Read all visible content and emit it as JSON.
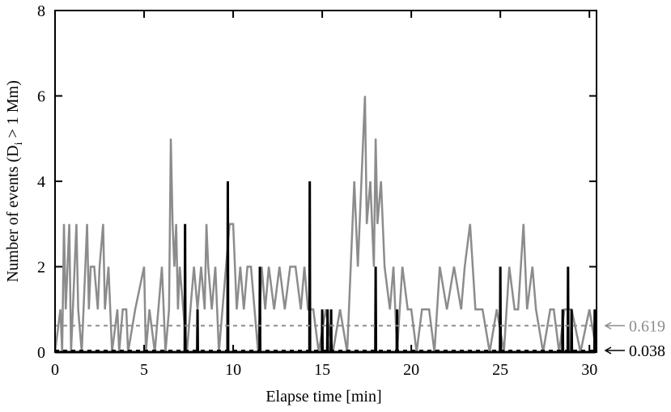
{
  "chart_data": {
    "type": "line",
    "x_label": "Elapse time [min]",
    "y_label": {
      "before": "Number of events (D",
      "sub": "i",
      "after": " > 1 Mm)"
    },
    "xlim": [
      0,
      30.4
    ],
    "ylim": [
      0,
      8
    ],
    "xticks": [
      0,
      5,
      10,
      15,
      20,
      25,
      30
    ],
    "yticks": [
      0,
      2,
      4,
      6,
      8
    ],
    "series": [
      {
        "color": "#8c8c8c",
        "x": [
          0,
          0.3,
          0.4,
          0.5,
          0.6,
          0.8,
          0.9,
          1.0,
          1.2,
          1.3,
          1.5,
          1.8,
          1.9,
          2.0,
          2.2,
          2.4,
          2.5,
          2.7,
          2.8,
          3.0,
          3.2,
          3.5,
          3.6,
          3.8,
          4.0,
          4.1,
          4.5,
          5.0,
          5.1,
          5.3,
          5.6,
          5.8,
          6.0,
          6.2,
          6.4,
          6.5,
          6.6,
          6.7,
          6.8,
          6.9,
          7.0,
          7.4,
          7.6,
          7.8,
          8.0,
          8.2,
          8.4,
          8.5,
          8.6,
          8.8,
          9.0,
          9.2,
          9.4,
          9.6,
          9.8,
          10.0,
          10.2,
          10.4,
          10.6,
          10.8,
          11.0,
          11.2,
          11.4,
          11.6,
          11.8,
          12.0,
          12.3,
          12.6,
          12.9,
          13.2,
          13.5,
          13.8,
          14.0,
          14.2,
          14.5,
          14.8,
          15.2,
          15.6,
          16.0,
          16.4,
          16.8,
          17.0,
          17.2,
          17.4,
          17.5,
          17.7,
          17.9,
          18.0,
          18.1,
          18.3,
          18.5,
          18.8,
          19.0,
          19.2,
          19.5,
          19.8,
          20.0,
          20.3,
          20.6,
          21.0,
          21.3,
          21.6,
          22.0,
          22.4,
          22.8,
          23.0,
          23.3,
          23.6,
          24.0,
          24.4,
          24.8,
          25.2,
          25.5,
          25.8,
          26.0,
          26.3,
          26.5,
          26.8,
          27.0,
          27.4,
          27.8,
          28.0,
          28.3,
          28.6,
          29.0,
          29.5,
          30.0,
          30.4
        ],
        "values": [
          0,
          1,
          0,
          3,
          1,
          3,
          0,
          1,
          3,
          1,
          0,
          3,
          1,
          2,
          2,
          1,
          2,
          3,
          1,
          2,
          0,
          1,
          0,
          1,
          1,
          0,
          1,
          2,
          0,
          1,
          0,
          1,
          2,
          0,
          1,
          5,
          3,
          2,
          3,
          1,
          2,
          0,
          1,
          2,
          1,
          2,
          1,
          3,
          2,
          1,
          2,
          0,
          1,
          2,
          3,
          3,
          1,
          2,
          1,
          2,
          2,
          1,
          0,
          2,
          1,
          2,
          1,
          2,
          1,
          2,
          2,
          1,
          2,
          1,
          1,
          0,
          1,
          0,
          1,
          0,
          4,
          2,
          4,
          6,
          3,
          4,
          2,
          5,
          3,
          4,
          2,
          1,
          2,
          0,
          2,
          1,
          1,
          0,
          1,
          1,
          0,
          2,
          1,
          2,
          1,
          2,
          3,
          1,
          1,
          0,
          1,
          0,
          2,
          1,
          1,
          3,
          1,
          2,
          1,
          0,
          1,
          1,
          0,
          1,
          1,
          0,
          1,
          0
        ]
      },
      {
        "color": "#000000",
        "x": [
          0,
          7.28,
          7.3,
          7.32,
          7.98,
          8.0,
          8.02,
          9.68,
          9.7,
          9.72,
          11.48,
          11.5,
          11.52,
          14.28,
          14.3,
          14.32,
          14.98,
          15.0,
          15.02,
          15.28,
          15.3,
          15.32,
          15.48,
          15.5,
          15.52,
          17.98,
          18.0,
          18.02,
          19.18,
          19.2,
          19.22,
          24.98,
          25.0,
          25.02,
          28.48,
          28.5,
          28.52,
          28.78,
          28.8,
          28.82,
          28.98,
          29.0,
          29.02,
          30.28,
          30.3,
          30.32
        ],
        "values": [
          0,
          0,
          3,
          0,
          0,
          1,
          0,
          0,
          4,
          0,
          0,
          2,
          0,
          0,
          4,
          0,
          0,
          1,
          0,
          0,
          1,
          0,
          0,
          1,
          0,
          0,
          2,
          0,
          0,
          1,
          0,
          0,
          2,
          0,
          0,
          1,
          0,
          0,
          2,
          0,
          0,
          1,
          0,
          0,
          1,
          0
        ]
      }
    ],
    "mean_lines": [
      {
        "value": 0.619,
        "label": "0.619",
        "color": "#8c8c8c"
      },
      {
        "value": 0.038,
        "label": "0.038",
        "color": "#000000"
      }
    ]
  }
}
